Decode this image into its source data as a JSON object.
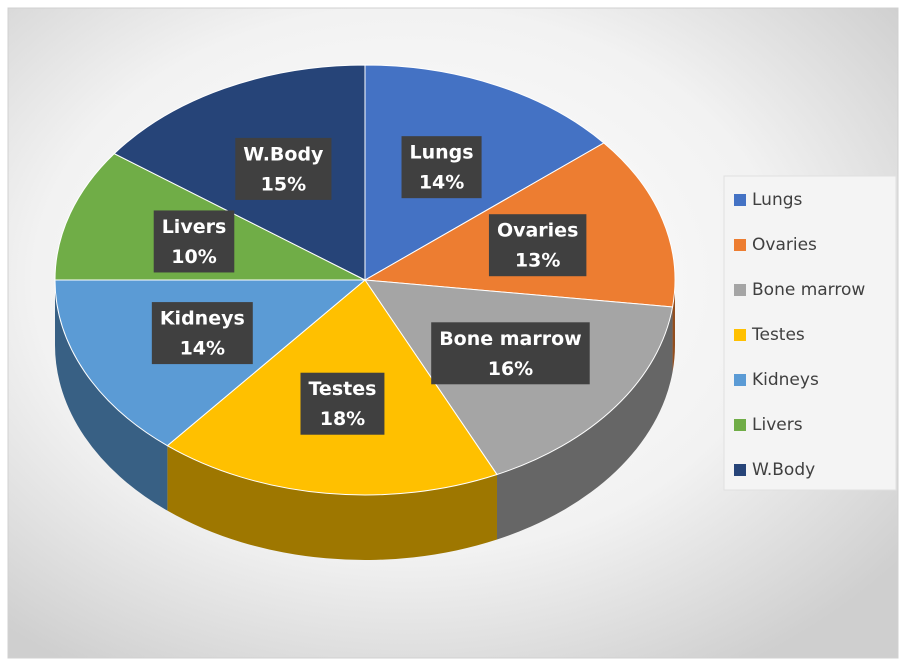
{
  "chart_data": {
    "type": "pie",
    "categories": [
      "Lungs",
      "Ovaries",
      "Bone marrow",
      "Testes",
      "Kidneys",
      "Livers",
      "W.Body"
    ],
    "values": [
      14,
      13,
      16,
      18,
      14,
      10,
      15
    ],
    "value_labels": [
      "14%",
      "13%",
      "16%",
      "18%",
      "14%",
      "10%",
      "15%"
    ],
    "colors": [
      "#4472C4",
      "#ED7D31",
      "#A5A5A5",
      "#FFC000",
      "#5B9BD5",
      "#70AD47",
      "#264478"
    ],
    "legend": "right"
  }
}
